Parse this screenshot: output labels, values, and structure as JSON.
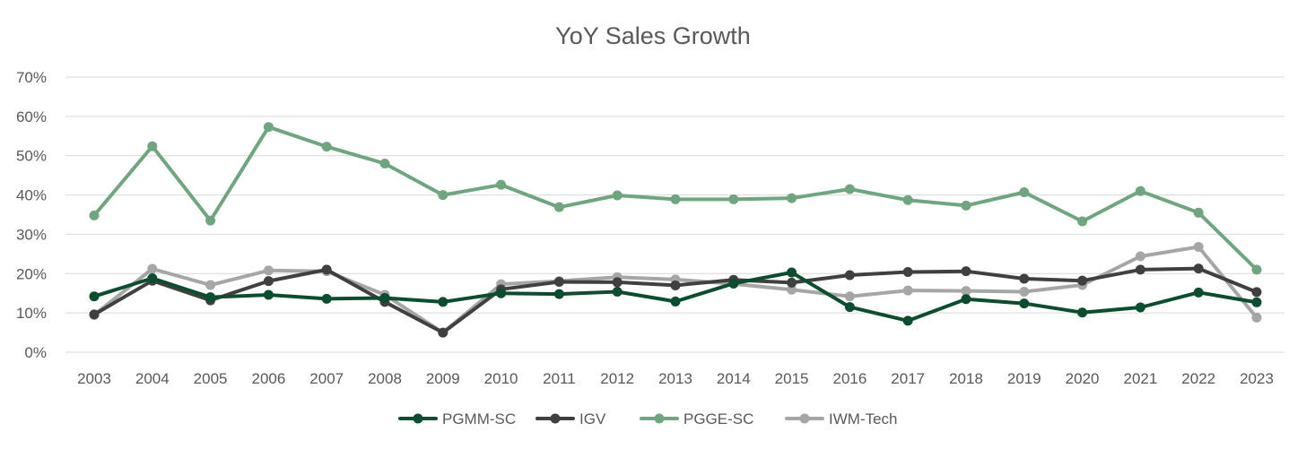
{
  "chart_data": {
    "type": "line",
    "title": "YoY Sales Growth",
    "xlabel": "",
    "ylabel": "",
    "x": [
      "2003",
      "2004",
      "2005",
      "2006",
      "2007",
      "2008",
      "2009",
      "2010",
      "2011",
      "2012",
      "2013",
      "2014",
      "2015",
      "2016",
      "2017",
      "2018",
      "2019",
      "2020",
      "2021",
      "2022",
      "2023"
    ],
    "ylim": [
      0,
      70
    ],
    "yticks": [
      0,
      10,
      20,
      30,
      40,
      50,
      60,
      70
    ],
    "ytick_labels": [
      "0%",
      "10%",
      "20%",
      "30%",
      "40%",
      "50%",
      "60%",
      "70%"
    ],
    "grid": true,
    "legend_position": "bottom",
    "series": [
      {
        "name": "PGMM-SC",
        "color": "#0b4d2f",
        "values": [
          14.2,
          18.8,
          14.0,
          14.6,
          13.6,
          13.8,
          12.8,
          15.0,
          14.8,
          15.4,
          12.9,
          17.5,
          20.3,
          11.5,
          8.0,
          13.5,
          12.4,
          10.1,
          11.4,
          15.2,
          12.7
        ]
      },
      {
        "name": "IGV",
        "color": "#404040",
        "values": [
          9.6,
          18.2,
          13.2,
          18.1,
          21.0,
          12.8,
          5.0,
          16.0,
          17.9,
          17.8,
          17.0,
          18.4,
          17.7,
          19.6,
          20.4,
          20.6,
          18.7,
          18.2,
          21.0,
          21.3,
          15.3
        ]
      },
      {
        "name": "PGGE-SC",
        "color": "#6fa57f",
        "values": [
          34.8,
          52.4,
          33.5,
          57.3,
          52.3,
          48.0,
          40.0,
          42.6,
          36.9,
          39.9,
          38.9,
          38.9,
          39.2,
          41.5,
          38.7,
          37.3,
          40.7,
          33.3,
          41.0,
          35.5,
          21.0
        ]
      },
      {
        "name": "IWM-Tech",
        "color": "#a6a6a6",
        "values": [
          9.5,
          21.2,
          17.1,
          20.8,
          20.6,
          14.6,
          5.0,
          17.3,
          18.1,
          19.1,
          18.5,
          17.4,
          15.9,
          14.2,
          15.7,
          15.6,
          15.4,
          17.1,
          24.4,
          26.8,
          8.8
        ]
      }
    ]
  }
}
